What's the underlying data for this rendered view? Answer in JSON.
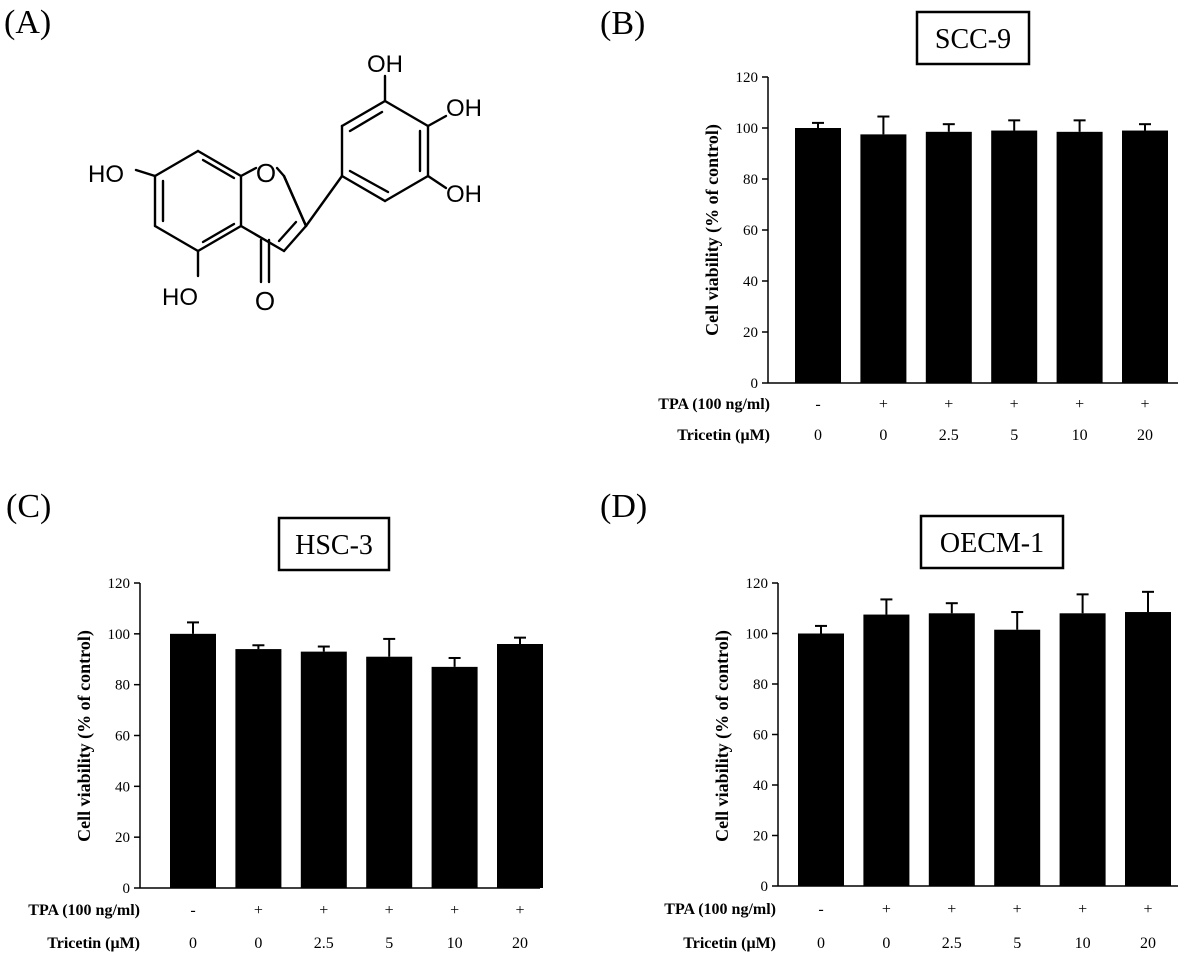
{
  "panel_A": {
    "letter": "(A)",
    "atoms": {
      "oh1": "OH",
      "oh2": "OH",
      "oh3": "OH",
      "ho1": "HO",
      "ho2": "HO",
      "o_ring": "O",
      "o_keto": "O"
    }
  },
  "chart_data": [
    {
      "type": "bar",
      "panel": "(B)",
      "title": "SCC-9",
      "ylabel": "Cell viability (% of control)",
      "ylim": [
        0,
        120
      ],
      "yticks": [
        0,
        20,
        40,
        60,
        80,
        100,
        120
      ],
      "row_labels": [
        "TPA (100 ng/ml)",
        "Tricetin (μM)"
      ],
      "tpa": [
        "-",
        "+",
        "+",
        "+",
        "+",
        "+"
      ],
      "tricetin": [
        "0",
        "0",
        "2.5",
        "5",
        "10",
        "20"
      ],
      "values": [
        100,
        97.5,
        98.5,
        99,
        98.5,
        99
      ],
      "errors": [
        2,
        7,
        3,
        4,
        4.5,
        2.5
      ]
    },
    {
      "type": "bar",
      "panel": "(C)",
      "title": "HSC-3",
      "ylabel": "Cell viability (% of control)",
      "ylim": [
        0,
        120
      ],
      "yticks": [
        0,
        20,
        40,
        60,
        80,
        100,
        120
      ],
      "row_labels": [
        "TPA (100 ng/ml)",
        "Tricetin (μM)"
      ],
      "tpa": [
        "-",
        "+",
        "+",
        "+",
        "+",
        "+"
      ],
      "tricetin": [
        "0",
        "0",
        "2.5",
        "5",
        "10",
        "20"
      ],
      "values": [
        100,
        94,
        93,
        91,
        87,
        96
      ],
      "errors": [
        4.5,
        1.5,
        2,
        7,
        3.5,
        2.5
      ]
    },
    {
      "type": "bar",
      "panel": "(D)",
      "title": "OECM-1",
      "ylabel": "Cell viability (% of control)",
      "ylim": [
        0,
        120
      ],
      "yticks": [
        0,
        20,
        40,
        60,
        80,
        100,
        120
      ],
      "row_labels": [
        "TPA (100 ng/ml)",
        "Tricetin (μM)"
      ],
      "tpa": [
        "-",
        "+",
        "+",
        "+",
        "+",
        "+"
      ],
      "tricetin": [
        "0",
        "0",
        "2.5",
        "5",
        "10",
        "20"
      ],
      "values": [
        100,
        107.5,
        108,
        101.5,
        108,
        108.5
      ],
      "errors": [
        3,
        6,
        4,
        7,
        7.5,
        8
      ]
    }
  ]
}
